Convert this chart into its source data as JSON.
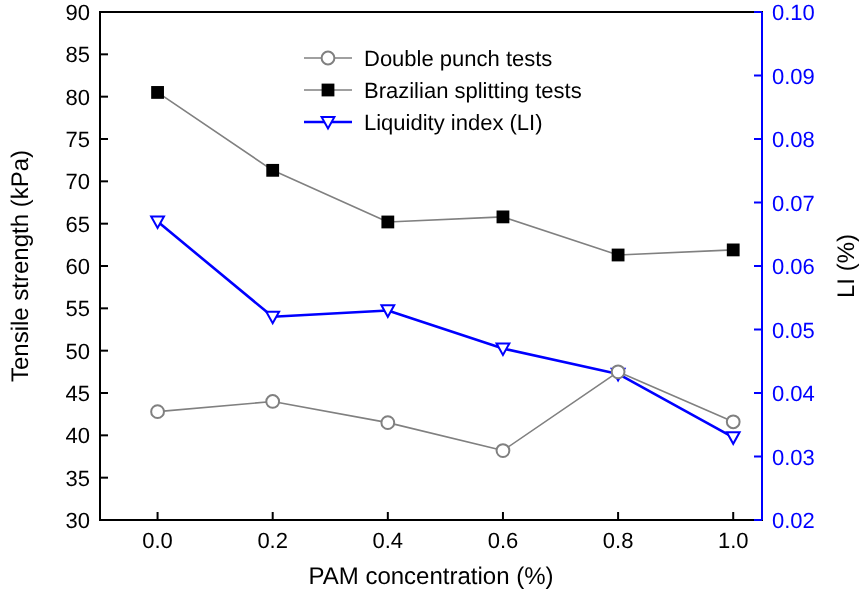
{
  "chart_data": {
    "type": "line",
    "xlabel": "PAM concentration (%)",
    "ylabel": "Tensile strength (kPa)",
    "y2label": "LI (%)",
    "x": [
      0.0,
      0.2,
      0.4,
      0.6,
      0.8,
      1.0
    ],
    "xlim": [
      -0.1,
      1.05
    ],
    "xticks": [
      {
        "value": 0,
        "label": "0.0"
      },
      0.2,
      0.4,
      0.6,
      0.8,
      {
        "value": 1,
        "label": "1.0"
      }
    ],
    "ylim": [
      30,
      90
    ],
    "yticks": [
      30,
      35,
      40,
      45,
      50,
      55,
      60,
      65,
      70,
      75,
      80,
      85,
      90
    ],
    "y2lim": [
      0.02,
      0.1
    ],
    "y2ticks": [
      0.02,
      0.03,
      0.04,
      0.05,
      0.06,
      0.07,
      0.08,
      0.09,
      {
        "value": 0.1,
        "label": "0.10"
      }
    ],
    "legend": "top",
    "grid": false,
    "series": [
      {
        "name": "Double punch tests",
        "color": "#808080",
        "marker": "circle",
        "values": [
          42.8,
          44.0,
          41.5,
          38.2,
          47.5,
          41.6
        ]
      },
      {
        "name": "Brazilian splitting tests",
        "color": "#808080",
        "marker": "square",
        "values": [
          80.5,
          71.3,
          65.2,
          65.8,
          61.3,
          61.9
        ]
      },
      {
        "name": "Liquidity index (LI)",
        "color": "#0000ff",
        "marker": "triangle",
        "axis": "y2",
        "values": [
          0.067,
          0.052,
          0.053,
          0.047,
          0.043,
          0.033
        ]
      }
    ]
  }
}
